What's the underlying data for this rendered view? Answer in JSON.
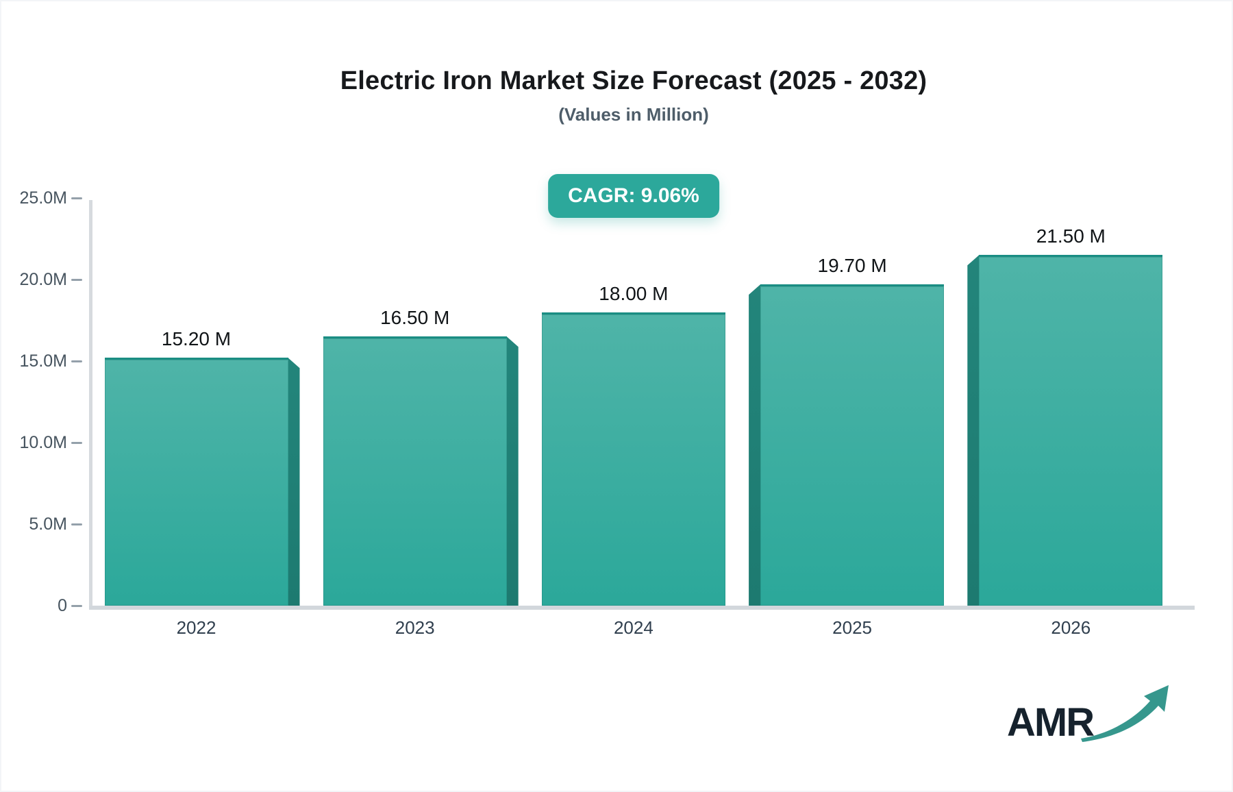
{
  "header": {
    "title": "Electric Iron Market Size Forecast (2025 - 2032)",
    "subtitle": "(Values in Million)",
    "cagr_badge": "CAGR: 9.06%"
  },
  "chart_data": {
    "type": "bar",
    "title": "Electric Iron Market Size Forecast (2025 - 2032)",
    "subtitle": "(Values in Million)",
    "cagr": "9.06%",
    "categories": [
      "2022",
      "2023",
      "2024",
      "2025",
      "2026"
    ],
    "values": [
      15.2,
      16.5,
      18.0,
      19.7,
      21.5
    ],
    "value_labels": [
      "15.20 M",
      "16.50 M",
      "18.00 M",
      "19.70 M",
      "21.50 M"
    ],
    "ylabel": "",
    "xlabel": "",
    "ylim": [
      0,
      25
    ],
    "y_ticks": [
      {
        "label": "25.0M",
        "value": 25
      },
      {
        "label": "20.0M",
        "value": 20
      },
      {
        "label": "15.0M",
        "value": 15
      },
      {
        "label": "10.0M",
        "value": 10
      },
      {
        "label": "5.0M",
        "value": 5
      },
      {
        "label": "0",
        "value": 0
      }
    ],
    "grid": false,
    "legend": "none",
    "bar_style": "3d-extruded",
    "colors": {
      "bar_fill_top": "#4FB4A8",
      "bar_fill_bottom": "#2BA89A",
      "bar_side": "#1E7E74",
      "bar_top_border": "#1A8D83",
      "badge_bg": "#2CA89B",
      "axis_line": "#D4D9DE",
      "tick_dash": "#94A0AA",
      "value_label_text": "#101417",
      "y_axis_text": "#47545F",
      "x_axis_text": "#303F4E",
      "title_text": "#17191C",
      "subtitle_text": "#4E5D69"
    }
  },
  "logo": {
    "text": "AMR",
    "text_color": "#16222D",
    "arrow_color": "#36978D"
  }
}
